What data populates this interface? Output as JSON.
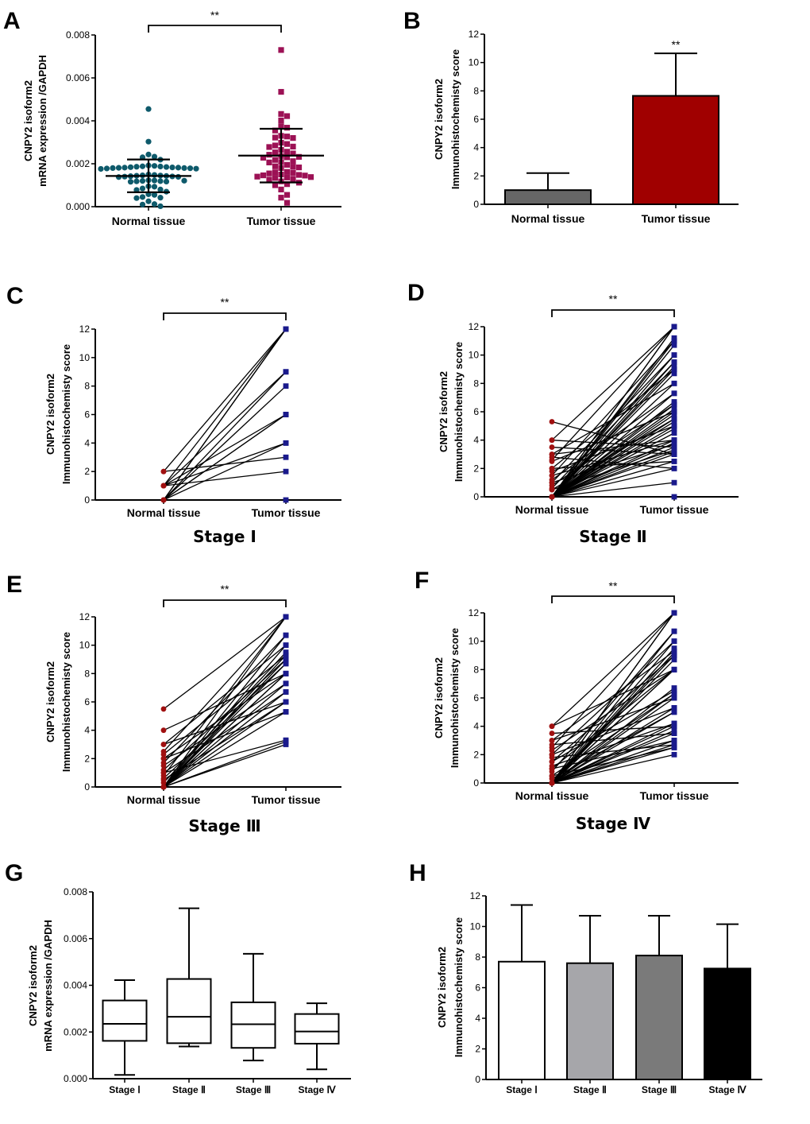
{
  "colors": {
    "normal_dot": "#0e5a6b",
    "tumor_square": "#9c1155",
    "paired_normal": "#a01010",
    "paired_tumor": "#1a1a8c",
    "bar_normal": "#666666",
    "bar_tumor": "#a00000",
    "stage_bars": [
      "#ffffff",
      "#a6a6aa",
      "#7a7a7a",
      "#000000"
    ],
    "axis": "#000000"
  },
  "chart_data": [
    {
      "panel": "A",
      "type": "scatter",
      "title": "",
      "significance": "**",
      "ylabel_lines": [
        "CNPY2 isoform2",
        "mRNA expression /GAPDH"
      ],
      "xlabel": "",
      "categories": [
        "Normal tissue",
        "Tumor tissue"
      ],
      "ylim": [
        0,
        0.008
      ],
      "yticks": [
        "0.000",
        "0.002",
        "0.004",
        "0.006",
        "0.008"
      ],
      "ytick_values": [
        0,
        0.002,
        0.004,
        0.006,
        0.008
      ],
      "series": [
        {
          "name": "Normal tissue",
          "marker": "circle",
          "mean": 0.00143,
          "sd_low": 0.00067,
          "sd_high": 0.0022,
          "values": [
            0.00455,
            0.00303,
            0.00243,
            0.00233,
            0.0023,
            0.00219,
            0.00192,
            0.0019,
            0.00188,
            0.00187,
            0.00186,
            0.00185,
            0.00184,
            0.00183,
            0.00182,
            0.00182,
            0.00181,
            0.0018,
            0.0018,
            0.00179,
            0.00178,
            0.00177,
            0.00176,
            0.0015,
            0.00148,
            0.00146,
            0.00145,
            0.00144,
            0.00143,
            0.00142,
            0.00141,
            0.0014,
            0.00139,
            0.00138,
            0.00123,
            0.00122,
            0.00121,
            0.0012,
            0.00119,
            0.00118,
            0.00117,
            0.00116,
            0.00095,
            0.00093,
            0.00085,
            0.0008,
            0.00078,
            0.0007,
            0.00058,
            0.00055,
            0.00045,
            0.00042,
            0.0004,
            0.00025,
            0.00012,
            0.0001,
            2e-05
          ]
        },
        {
          "name": "Tumor tissue",
          "marker": "square",
          "mean": 0.00238,
          "sd_low": 0.00113,
          "sd_high": 0.00363,
          "values": [
            0.0073,
            0.00535,
            0.00432,
            0.00422,
            0.00402,
            0.00375,
            0.00368,
            0.00355,
            0.0033,
            0.00327,
            0.00322,
            0.0032,
            0.00298,
            0.00292,
            0.00285,
            0.0028,
            0.00278,
            0.00265,
            0.00256,
            0.00253,
            0.00248,
            0.00242,
            0.00236,
            0.00232,
            0.0023,
            0.00228,
            0.00218,
            0.00212,
            0.00208,
            0.00206,
            0.00195,
            0.00188,
            0.00186,
            0.00183,
            0.0018,
            0.00162,
            0.0016,
            0.00158,
            0.00155,
            0.0015,
            0.00148,
            0.00146,
            0.00145,
            0.0014,
            0.00138,
            0.00136,
            0.00134,
            0.0013,
            0.00126,
            0.00118,
            0.00112,
            0.00105,
            0.001,
            0.0008,
            0.00055,
            0.00042,
            0.00018
          ]
        }
      ]
    },
    {
      "panel": "B",
      "type": "bar",
      "significance": "**",
      "ylabel_lines": [
        "CNPY2 isoform2",
        "Immunohistochemisty score"
      ],
      "categories": [
        "Normal tissue",
        "Tumor tissue"
      ],
      "values": [
        1.0,
        7.65
      ],
      "error_upper": [
        2.2,
        10.65
      ],
      "ylim": [
        0,
        12
      ],
      "yticks": [
        "0",
        "2",
        "4",
        "6",
        "8",
        "10",
        "12"
      ],
      "ytick_values": [
        0,
        2,
        4,
        6,
        8,
        10,
        12
      ]
    },
    {
      "panel": "C",
      "type": "line",
      "subtitle": "Stage Ⅰ",
      "significance": "**",
      "ylabel_lines": [
        "CNPY2 isoform2",
        "Immunohistochemisty score"
      ],
      "categories": [
        "Normal tissue",
        "Tumor tissue"
      ],
      "ylim": [
        0,
        12
      ],
      "yticks": [
        "0",
        "2",
        "4",
        "6",
        "8",
        "10",
        "12"
      ],
      "ytick_values": [
        0,
        2,
        4,
        6,
        8,
        10,
        12
      ],
      "pairs": [
        [
          2,
          12
        ],
        [
          0,
          12
        ],
        [
          1,
          12
        ],
        [
          0,
          12
        ],
        [
          0,
          9
        ],
        [
          1,
          9
        ],
        [
          0,
          8
        ],
        [
          0,
          6
        ],
        [
          1,
          6
        ],
        [
          0,
          6
        ],
        [
          0,
          4
        ],
        [
          1,
          4
        ],
        [
          2,
          3
        ],
        [
          1,
          2
        ],
        [
          0,
          0
        ]
      ]
    },
    {
      "panel": "D",
      "type": "line",
      "subtitle": "Stage Ⅱ",
      "significance": "**",
      "ylabel_lines": [
        "CNPY2 isoform2",
        "Immunohistochemisty score"
      ],
      "categories": [
        "Normal tissue",
        "Tumor tissue"
      ],
      "ylim": [
        0,
        12
      ],
      "yticks": [
        "0",
        "2",
        "4",
        "6",
        "8",
        "10",
        "12"
      ],
      "ytick_values": [
        0,
        2,
        4,
        6,
        8,
        10,
        12
      ],
      "pairs": [
        [
          5.3,
          3
        ],
        [
          4,
          12
        ],
        [
          4,
          3.5
        ],
        [
          3.5,
          3
        ],
        [
          3,
          8
        ],
        [
          3,
          4
        ],
        [
          2.8,
          2
        ],
        [
          2.6,
          12
        ],
        [
          2.5,
          6
        ],
        [
          2,
          9
        ],
        [
          2,
          2.5
        ],
        [
          1.8,
          5
        ],
        [
          1.5,
          11
        ],
        [
          1.5,
          4
        ],
        [
          1.2,
          7.3
        ],
        [
          1,
          10
        ],
        [
          1,
          3.7
        ],
        [
          0.8,
          6.5
        ],
        [
          0.6,
          9.5
        ],
        [
          0.5,
          5.5
        ],
        [
          0.5,
          3.3
        ],
        [
          0,
          12
        ],
        [
          0,
          12
        ],
        [
          0,
          11.2
        ],
        [
          0,
          11
        ],
        [
          0,
          10.7
        ],
        [
          0,
          10
        ],
        [
          0,
          9.5
        ],
        [
          0,
          9.2
        ],
        [
          0,
          9
        ],
        [
          0,
          8.7
        ],
        [
          0,
          8
        ],
        [
          0,
          7.3
        ],
        [
          0,
          6.7
        ],
        [
          0,
          6.5
        ],
        [
          0,
          6.2
        ],
        [
          0,
          6
        ],
        [
          0,
          5.8
        ],
        [
          0,
          5.5
        ],
        [
          0,
          5.3
        ],
        [
          0,
          5
        ],
        [
          0,
          4.8
        ],
        [
          0,
          4.5
        ],
        [
          0,
          4
        ],
        [
          0,
          3.8
        ],
        [
          0,
          3.5
        ],
        [
          0,
          3.2
        ],
        [
          0,
          3
        ],
        [
          0,
          2.5
        ],
        [
          0,
          2
        ],
        [
          0,
          1
        ],
        [
          0,
          0
        ]
      ]
    },
    {
      "panel": "E",
      "type": "line",
      "subtitle": "Stage Ⅲ",
      "significance": "**",
      "ylabel_lines": [
        "CNPY2 isoform2",
        "Immunohistochemisty score"
      ],
      "categories": [
        "Normal tissue",
        "Tumor tissue"
      ],
      "ylim": [
        0,
        12
      ],
      "yticks": [
        "0",
        "2",
        "4",
        "6",
        "8",
        "10",
        "12"
      ],
      "ytick_values": [
        0,
        2,
        4,
        6,
        8,
        10,
        12
      ],
      "pairs": [
        [
          5.5,
          12
        ],
        [
          4,
          8
        ],
        [
          3,
          10
        ],
        [
          3,
          6
        ],
        [
          2.5,
          12
        ],
        [
          2.3,
          9.3
        ],
        [
          2,
          8
        ],
        [
          2,
          5.3
        ],
        [
          1.7,
          10.7
        ],
        [
          1.5,
          7.3
        ],
        [
          1.2,
          9
        ],
        [
          1,
          6.7
        ],
        [
          1,
          3.3
        ],
        [
          0.8,
          12
        ],
        [
          0.6,
          8.7
        ],
        [
          0.5,
          6
        ],
        [
          0.3,
          9.5
        ],
        [
          0,
          12
        ],
        [
          0,
          10.7
        ],
        [
          0,
          10
        ],
        [
          0,
          9.3
        ],
        [
          0,
          9
        ],
        [
          0,
          8.7
        ],
        [
          0,
          8
        ],
        [
          0,
          8
        ],
        [
          0,
          7.3
        ],
        [
          0,
          6.7
        ],
        [
          0,
          6
        ],
        [
          0,
          5.3
        ],
        [
          0,
          3.2
        ],
        [
          0,
          3
        ]
      ]
    },
    {
      "panel": "F",
      "type": "line",
      "subtitle": "Stage Ⅳ",
      "significance": "**",
      "ylabel_lines": [
        "CNPY2 isoform2",
        "Immunohistochemisty score"
      ],
      "categories": [
        "Normal tissue",
        "Tumor tissue"
      ],
      "ylim": [
        0,
        12
      ],
      "yticks": [
        "0",
        "2",
        "4",
        "6",
        "8",
        "10",
        "12"
      ],
      "ytick_values": [
        0,
        2,
        4,
        6,
        8,
        10,
        12
      ],
      "pairs": [
        [
          4,
          12
        ],
        [
          4,
          8
        ],
        [
          3.5,
          4
        ],
        [
          3,
          9.3
        ],
        [
          3,
          6
        ],
        [
          2.7,
          3.5
        ],
        [
          2.5,
          12
        ],
        [
          2.3,
          8
        ],
        [
          2,
          10
        ],
        [
          2,
          5.3
        ],
        [
          1.8,
          2.7
        ],
        [
          1.5,
          9
        ],
        [
          1.5,
          6.5
        ],
        [
          1.2,
          4.2
        ],
        [
          1,
          8
        ],
        [
          1,
          3
        ],
        [
          0.8,
          10.7
        ],
        [
          0.5,
          6.3
        ],
        [
          0.5,
          2.5
        ],
        [
          0.3,
          5
        ],
        [
          0,
          12
        ],
        [
          0,
          12
        ],
        [
          0,
          10.7
        ],
        [
          0,
          10
        ],
        [
          0,
          9.5
        ],
        [
          0,
          9.2
        ],
        [
          0,
          9
        ],
        [
          0,
          8.7
        ],
        [
          0,
          8
        ],
        [
          0,
          8
        ],
        [
          0,
          6.7
        ],
        [
          0,
          6.3
        ],
        [
          0,
          6
        ],
        [
          0,
          5.3
        ],
        [
          0,
          5
        ],
        [
          0,
          4.2
        ],
        [
          0,
          4
        ],
        [
          0,
          3.7
        ],
        [
          0,
          3.5
        ],
        [
          0,
          3
        ],
        [
          0,
          2.7
        ],
        [
          0,
          2.5
        ],
        [
          0,
          2
        ]
      ]
    },
    {
      "panel": "G",
      "type": "box",
      "ylabel_lines": [
        "CNPY2 isoform2",
        "mRNA expression /GAPDH"
      ],
      "categories": [
        "Stage Ⅰ",
        "Stage Ⅱ",
        "Stage Ⅲ",
        "Stage Ⅳ"
      ],
      "ylim": [
        0,
        0.008
      ],
      "yticks": [
        "0.000",
        "0.002",
        "0.004",
        "0.006",
        "0.008"
      ],
      "ytick_values": [
        0,
        0.002,
        0.004,
        0.006,
        0.008
      ],
      "boxes": [
        {
          "min": 0.00016,
          "q1": 0.00162,
          "median": 0.00235,
          "q3": 0.00335,
          "max": 0.00422
        },
        {
          "min": 0.00138,
          "q1": 0.00152,
          "median": 0.00265,
          "q3": 0.00427,
          "max": 0.0073
        },
        {
          "min": 0.00078,
          "q1": 0.00132,
          "median": 0.00233,
          "q3": 0.00327,
          "max": 0.00535
        },
        {
          "min": 0.0004,
          "q1": 0.0015,
          "median": 0.00202,
          "q3": 0.00277,
          "max": 0.00323
        }
      ]
    },
    {
      "panel": "H",
      "type": "bar",
      "ylabel_lines": [
        "CNPY2 isoform2",
        "Immunohistochemisty score"
      ],
      "categories": [
        "Stage Ⅰ",
        "Stage Ⅱ",
        "Stage Ⅲ",
        "Stage Ⅳ"
      ],
      "values": [
        7.7,
        7.6,
        8.1,
        7.25
      ],
      "error_upper": [
        11.4,
        10.7,
        10.7,
        10.15
      ],
      "ylim": [
        0,
        12
      ],
      "yticks": [
        "0",
        "2",
        "4",
        "6",
        "8",
        "10",
        "12"
      ],
      "ytick_values": [
        0,
        2,
        4,
        6,
        8,
        10,
        12
      ]
    }
  ]
}
